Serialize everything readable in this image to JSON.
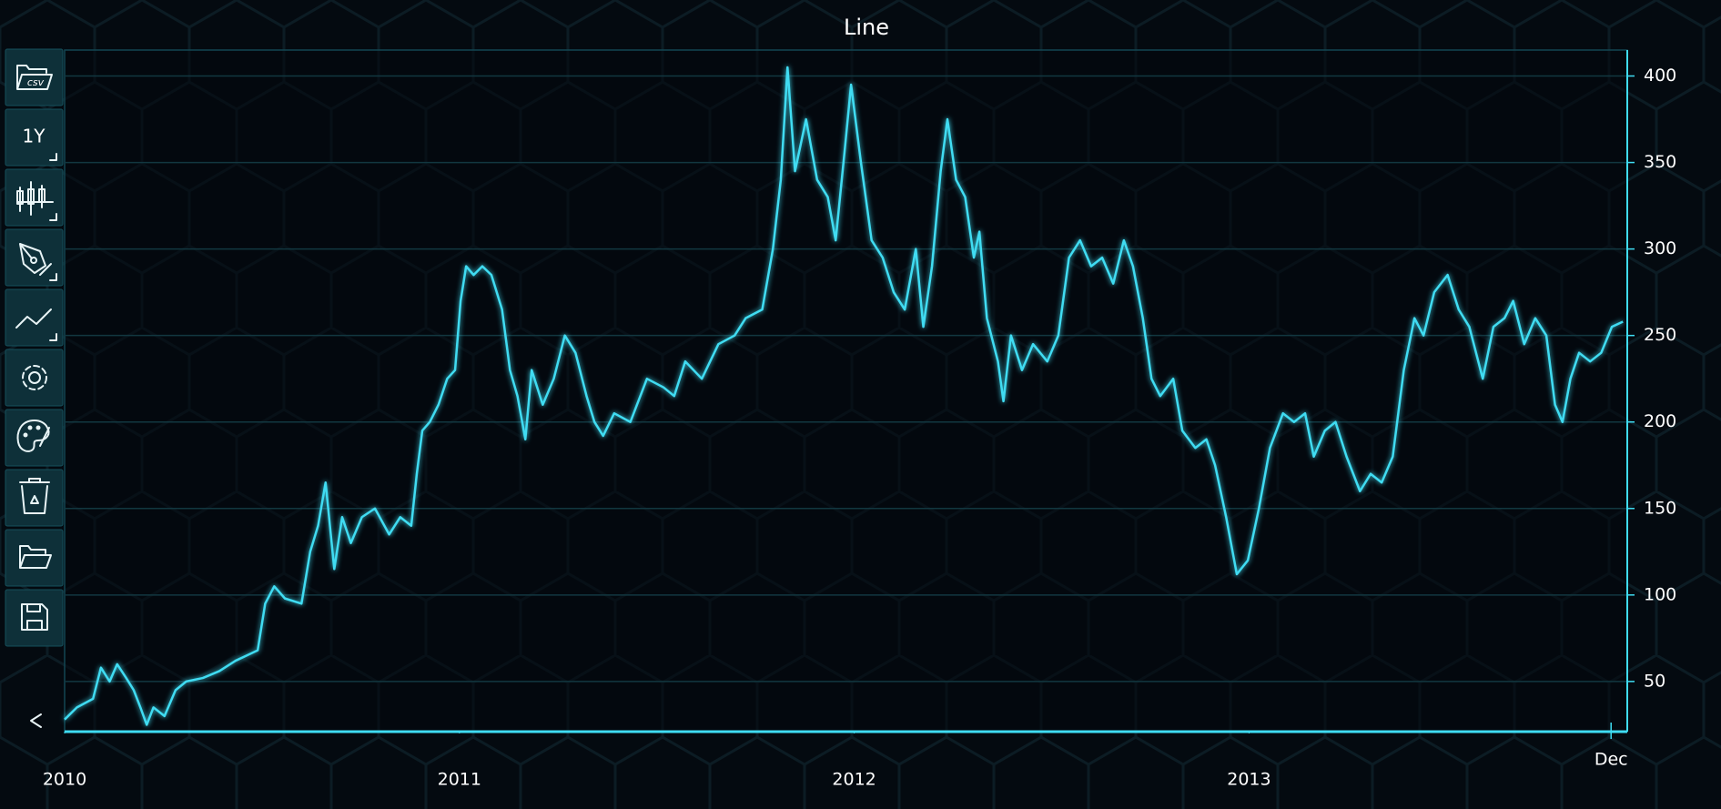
{
  "chart_data": {
    "type": "line",
    "title": "Line",
    "x": [
      2010.0,
      2010.031,
      2010.072,
      2010.092,
      2010.114,
      2010.133,
      2010.156,
      2010.175,
      2010.192,
      2010.208,
      2010.225,
      2010.253,
      2010.281,
      2010.308,
      2010.35,
      2010.392,
      2010.433,
      2010.461,
      2010.489,
      2010.508,
      2010.531,
      2010.558,
      2010.6,
      2010.622,
      2010.642,
      2010.661,
      2010.683,
      2010.703,
      2010.725,
      2010.753,
      2010.786,
      2010.822,
      2010.85,
      2010.878,
      2010.892,
      2010.906,
      2010.925,
      2010.947,
      2010.969,
      2010.989,
      2011.003,
      2011.017,
      2011.036,
      2011.058,
      2011.081,
      2011.108,
      2011.128,
      2011.147,
      2011.167,
      2011.183,
      2011.211,
      2011.239,
      2011.267,
      2011.294,
      2011.322,
      2011.342,
      2011.364,
      2011.392,
      2011.433,
      2011.475,
      2011.517,
      2011.544,
      2011.572,
      2011.614,
      2011.656,
      2011.697,
      2011.725,
      2011.767,
      2011.794,
      2011.814,
      2011.831,
      2011.85,
      2011.878,
      2011.906,
      2011.933,
      2011.953,
      2011.975,
      2011.992,
      2012.017,
      2012.044,
      2012.072,
      2012.1,
      2012.128,
      2012.156,
      2012.175,
      2012.197,
      2012.219,
      2012.236,
      2012.258,
      2012.281,
      2012.303,
      2012.317,
      2012.336,
      2012.364,
      2012.378,
      2012.397,
      2012.425,
      2012.453,
      2012.489,
      2012.517,
      2012.544,
      2012.572,
      2012.6,
      2012.628,
      2012.656,
      2012.683,
      2012.706,
      2012.731,
      2012.753,
      2012.775,
      2012.808,
      2012.831,
      2012.864,
      2012.892,
      2012.914,
      2012.942,
      2012.969,
      2012.997,
      2013.025,
      2013.053,
      2013.086,
      2013.114,
      2013.142,
      2013.164,
      2013.192,
      2013.219,
      2013.247,
      2013.281,
      2013.308,
      2013.336,
      2013.364,
      2013.392,
      2013.419,
      2013.442,
      2013.469,
      2013.503,
      2013.531,
      2013.558,
      2013.592,
      2013.619,
      2013.647,
      2013.669,
      2013.697,
      2013.725,
      2013.753,
      2013.775,
      2013.794,
      2013.814,
      2013.836,
      2013.864,
      2013.892,
      2013.919,
      2013.947
    ],
    "values": [
      28,
      35,
      40,
      58,
      50,
      60,
      52,
      45,
      35,
      25,
      35,
      30,
      45,
      50,
      52,
      56,
      62,
      65,
      68,
      95,
      105,
      98,
      95,
      125,
      140,
      165,
      115,
      145,
      130,
      145,
      150,
      135,
      145,
      140,
      170,
      195,
      200,
      210,
      225,
      230,
      270,
      290,
      285,
      290,
      285,
      265,
      230,
      215,
      190,
      230,
      210,
      225,
      250,
      240,
      215,
      200,
      192,
      205,
      200,
      225,
      220,
      215,
      235,
      225,
      245,
      250,
      260,
      265,
      300,
      340,
      405,
      345,
      375,
      340,
      330,
      305,
      355,
      395,
      350,
      305,
      295,
      275,
      265,
      300,
      255,
      290,
      345,
      375,
      340,
      330,
      295,
      310,
      260,
      235,
      212,
      250,
      230,
      245,
      235,
      250,
      295,
      305,
      290,
      295,
      280,
      305,
      290,
      260,
      225,
      215,
      225,
      195,
      185,
      190,
      175,
      145,
      112,
      120,
      150,
      185,
      205,
      200,
      205,
      180,
      195,
      200,
      180,
      160,
      170,
      165,
      180,
      230,
      260,
      250,
      275,
      285,
      265,
      255,
      225,
      255,
      260,
      270,
      245,
      260,
      250,
      210,
      200,
      225,
      240,
      235,
      240,
      255,
      258
    ],
    "color": "#3fdcf2",
    "xlim": [
      2010,
      2013.958
    ],
    "xticks": [
      2010,
      2011,
      2012,
      2013,
      {
        "value": 2013.917,
        "label": "Dec"
      }
    ],
    "ylim": [
      21,
      415
    ],
    "yticks": [
      50,
      100,
      150,
      200,
      250,
      300,
      350,
      400
    ],
    "grid": true
  },
  "toolbar": {
    "csv_icon_label": "csv",
    "range_button": "1Y"
  }
}
